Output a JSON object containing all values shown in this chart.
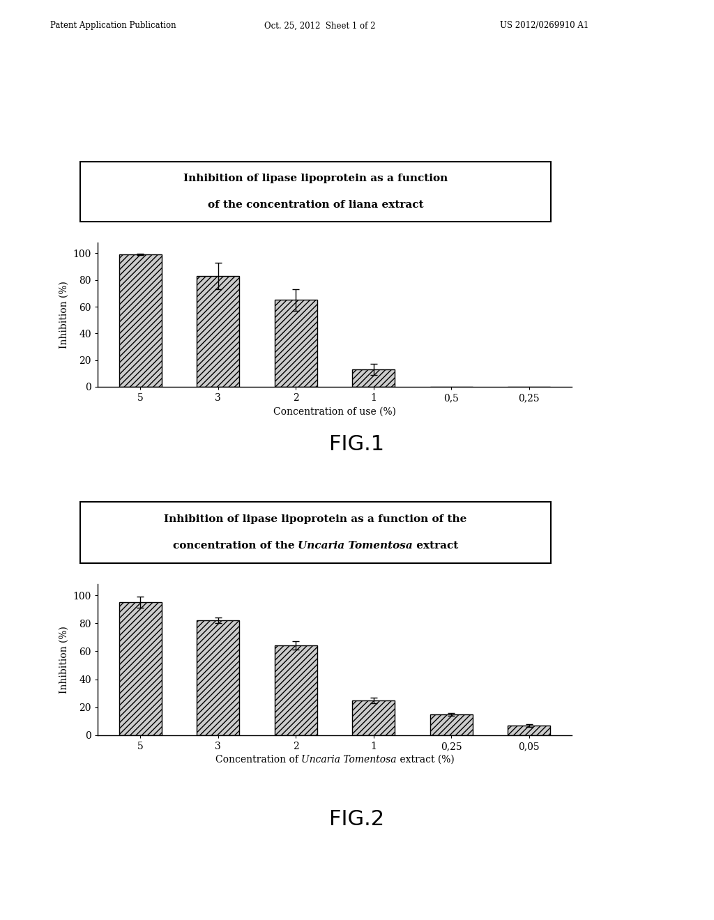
{
  "fig1": {
    "title_line1": "Inhibition of lipase lipoprotein as a function",
    "title_line2": "of the concentration of liana extract",
    "categories": [
      "5",
      "3",
      "2",
      "1",
      "0,5",
      "0,25"
    ],
    "values": [
      99,
      83,
      65,
      13,
      0,
      0
    ],
    "errors": [
      0.5,
      10,
      8,
      4,
      0,
      0
    ],
    "xlabel": "Concentration of use (%)",
    "ylabel": "Inhibition (%)",
    "ylim": [
      0,
      108
    ],
    "yticks": [
      0,
      20,
      40,
      60,
      80,
      100
    ],
    "fig_label": "FIG.1"
  },
  "fig2": {
    "title_line1": "Inhibition of lipase lipoprotein as a function of the",
    "title_line2_pre": "concentration of the ",
    "title_line2_italic": "Uncaria Tomentosa",
    "title_line2_post": " extract",
    "categories": [
      "5",
      "3",
      "2",
      "1",
      "0,25",
      "0,05"
    ],
    "values": [
      95,
      82,
      64,
      25,
      15,
      7
    ],
    "errors": [
      4,
      2,
      3,
      2,
      1,
      1
    ],
    "xlabel_pre": "Concentration of ",
    "xlabel_italic": "Uncaria Tomentosa",
    "xlabel_post": " extract (%)",
    "ylabel": "Inhibition (%)",
    "ylim": [
      0,
      108
    ],
    "yticks": [
      0,
      20,
      40,
      60,
      80,
      100
    ],
    "fig_label": "FIG.2"
  },
  "bar_facecolor": "#cccccc",
  "bar_edgecolor": "#000000",
  "hatch_pattern": "////",
  "header_text1": "Patent Application Publication",
  "header_text2": "Oct. 25, 2012  Sheet 1 of 2",
  "header_text3": "US 2012/0269910 A1",
  "title_box_color": "#ffffff",
  "title_box_edge": "#000000"
}
